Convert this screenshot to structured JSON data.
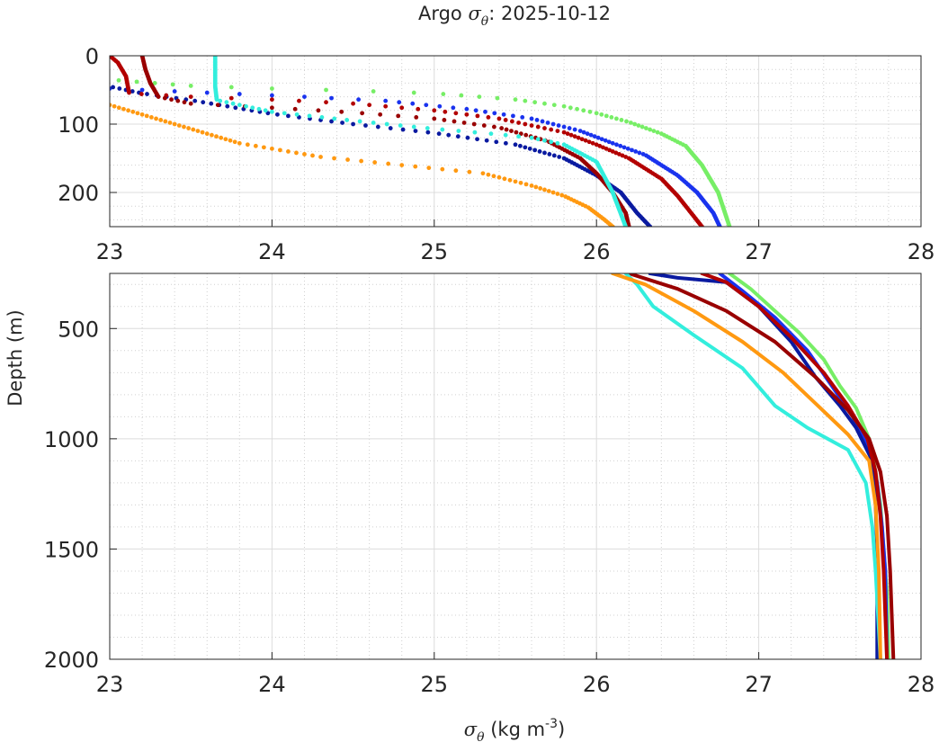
{
  "chart_data": {
    "type": "scatter",
    "title": "Argo σθ: 2025-10-12",
    "title_prefix": "Argo ",
    "title_sym": "σ",
    "title_sub": "θ",
    "title_suffix": ": 2025-10-12",
    "xlabel_sym": "σ",
    "xlabel_sub": "θ",
    "xlabel_units": " (kg m",
    "xlabel_sup": "-3",
    "xlabel_close": ")",
    "ylabel": "Depth (m)",
    "xlim": [
      23,
      28
    ],
    "xticks": [
      "23",
      "24",
      "25",
      "26",
      "27",
      "28"
    ],
    "panels": [
      {
        "name": "upper",
        "ylim": [
          250,
          0
        ],
        "yticks": [
          "0",
          "100",
          "200"
        ],
        "ytick_values": [
          0,
          100,
          200
        ]
      },
      {
        "name": "lower",
        "ylim": [
          2000,
          250
        ],
        "yticks": [
          "500",
          "1000",
          "1500",
          "2000"
        ],
        "ytick_values": [
          500,
          1000,
          1500,
          2000
        ]
      }
    ],
    "series": [
      {
        "name": "light-green",
        "color": "#77ee66",
        "points": [
          [
            23.0,
            35
          ],
          [
            23.5,
            44
          ],
          [
            24.0,
            48
          ],
          [
            24.5,
            51
          ],
          [
            25.0,
            55
          ],
          [
            25.5,
            64
          ],
          [
            25.8,
            74
          ],
          [
            26.0,
            84
          ],
          [
            26.2,
            97
          ],
          [
            26.4,
            114
          ],
          [
            26.55,
            132
          ],
          [
            26.65,
            160
          ],
          [
            26.75,
            200
          ],
          [
            26.82,
            250
          ],
          [
            26.95,
            320
          ],
          [
            27.1,
            420
          ],
          [
            27.25,
            520
          ],
          [
            27.4,
            640
          ],
          [
            27.5,
            760
          ],
          [
            27.6,
            860
          ],
          [
            27.68,
            1000
          ],
          [
            27.72,
            1150
          ],
          [
            27.75,
            1300
          ],
          [
            27.77,
            1500
          ],
          [
            27.79,
            1700
          ],
          [
            27.8,
            2000
          ]
        ]
      },
      {
        "name": "blue",
        "color": "#1a33ee",
        "points": [
          [
            23.0,
            48
          ],
          [
            23.6,
            54
          ],
          [
            24.2,
            60
          ],
          [
            24.7,
            66
          ],
          [
            25.2,
            78
          ],
          [
            25.6,
            92
          ],
          [
            25.9,
            110
          ],
          [
            26.1,
            128
          ],
          [
            26.3,
            145
          ],
          [
            26.5,
            175
          ],
          [
            26.62,
            200
          ],
          [
            26.72,
            230
          ],
          [
            26.76,
            250
          ],
          [
            26.9,
            330
          ],
          [
            27.1,
            450
          ],
          [
            27.3,
            600
          ],
          [
            27.45,
            760
          ],
          [
            27.58,
            900
          ],
          [
            27.68,
            1050
          ],
          [
            27.73,
            1200
          ],
          [
            27.76,
            1400
          ],
          [
            27.78,
            1600
          ],
          [
            27.79,
            2000
          ]
        ]
      },
      {
        "name": "navy",
        "color": "#0a1aa0",
        "points": [
          [
            23.0,
            45
          ],
          [
            23.2,
            55
          ],
          [
            23.5,
            65
          ],
          [
            24.0,
            85
          ],
          [
            24.5,
            100
          ],
          [
            25.0,
            113
          ],
          [
            25.5,
            130
          ],
          [
            25.8,
            150
          ],
          [
            26.0,
            175
          ],
          [
            26.15,
            200
          ],
          [
            26.25,
            230
          ],
          [
            26.33,
            250
          ],
          [
            26.5,
            270
          ],
          [
            26.8,
            290
          ],
          [
            27.0,
            400
          ],
          [
            27.2,
            560
          ],
          [
            27.35,
            720
          ],
          [
            27.5,
            850
          ],
          [
            27.6,
            950
          ],
          [
            27.7,
            1100
          ],
          [
            27.72,
            1300
          ],
          [
            27.73,
            1500
          ],
          [
            27.73,
            2000
          ]
        ]
      },
      {
        "name": "dark-red",
        "color": "#b30000",
        "points": [
          [
            23.0,
            0
          ],
          [
            23.05,
            10
          ],
          [
            23.1,
            30
          ],
          [
            23.12,
            55
          ],
          [
            23.5,
            60
          ],
          [
            24.0,
            64
          ],
          [
            24.5,
            70
          ],
          [
            25.0,
            80
          ],
          [
            25.4,
            92
          ],
          [
            25.8,
            112
          ],
          [
            26.0,
            130
          ],
          [
            26.2,
            150
          ],
          [
            26.4,
            180
          ],
          [
            26.5,
            205
          ],
          [
            26.6,
            235
          ],
          [
            26.65,
            250
          ],
          [
            26.8,
            290
          ],
          [
            27.0,
            400
          ],
          [
            27.2,
            540
          ],
          [
            27.4,
            700
          ],
          [
            27.55,
            850
          ],
          [
            27.67,
            1000
          ],
          [
            27.72,
            1150
          ],
          [
            27.75,
            1350
          ],
          [
            27.77,
            1600
          ],
          [
            27.79,
            2000
          ]
        ]
      },
      {
        "name": "maroon",
        "color": "#990000",
        "points": [
          [
            23.2,
            0
          ],
          [
            23.22,
            20
          ],
          [
            23.25,
            40
          ],
          [
            23.3,
            60
          ],
          [
            23.5,
            70
          ],
          [
            24.0,
            76
          ],
          [
            24.5,
            83
          ],
          [
            25.0,
            92
          ],
          [
            25.4,
            105
          ],
          [
            25.7,
            125
          ],
          [
            25.9,
            150
          ],
          [
            26.0,
            172
          ],
          [
            26.1,
            200
          ],
          [
            26.18,
            230
          ],
          [
            26.2,
            250
          ],
          [
            26.5,
            320
          ],
          [
            26.8,
            420
          ],
          [
            27.1,
            560
          ],
          [
            27.35,
            720
          ],
          [
            27.55,
            870
          ],
          [
            27.68,
            1000
          ],
          [
            27.75,
            1150
          ],
          [
            27.79,
            1350
          ],
          [
            27.81,
            1600
          ],
          [
            27.83,
            2000
          ]
        ]
      },
      {
        "name": "cyan",
        "color": "#33eedd",
        "points": [
          [
            23.65,
            0
          ],
          [
            23.65,
            20
          ],
          [
            23.65,
            45
          ],
          [
            23.66,
            65
          ],
          [
            24.0,
            82
          ],
          [
            24.5,
            95
          ],
          [
            25.0,
            107
          ],
          [
            25.4,
            115
          ],
          [
            25.6,
            120
          ],
          [
            25.8,
            130
          ],
          [
            26.0,
            155
          ],
          [
            26.1,
            200
          ],
          [
            26.18,
            250
          ],
          [
            26.25,
            300
          ],
          [
            26.35,
            400
          ],
          [
            26.6,
            530
          ],
          [
            26.9,
            680
          ],
          [
            27.1,
            850
          ],
          [
            27.3,
            950
          ],
          [
            27.55,
            1050
          ],
          [
            27.66,
            1200
          ],
          [
            27.7,
            1400
          ],
          [
            27.72,
            1600
          ],
          [
            27.75,
            2000
          ]
        ]
      },
      {
        "name": "orange",
        "color": "#ff9911",
        "points": [
          [
            23.0,
            72
          ],
          [
            23.4,
            100
          ],
          [
            23.8,
            128
          ],
          [
            24.3,
            148
          ],
          [
            24.8,
            160
          ],
          [
            25.3,
            172
          ],
          [
            25.6,
            190
          ],
          [
            25.8,
            205
          ],
          [
            25.95,
            222
          ],
          [
            26.05,
            240
          ],
          [
            26.1,
            250
          ],
          [
            26.3,
            300
          ],
          [
            26.6,
            420
          ],
          [
            26.9,
            560
          ],
          [
            27.15,
            700
          ],
          [
            27.35,
            840
          ],
          [
            27.55,
            980
          ],
          [
            27.68,
            1100
          ],
          [
            27.72,
            1300
          ],
          [
            27.74,
            1600
          ],
          [
            27.75,
            2000
          ]
        ]
      }
    ]
  }
}
